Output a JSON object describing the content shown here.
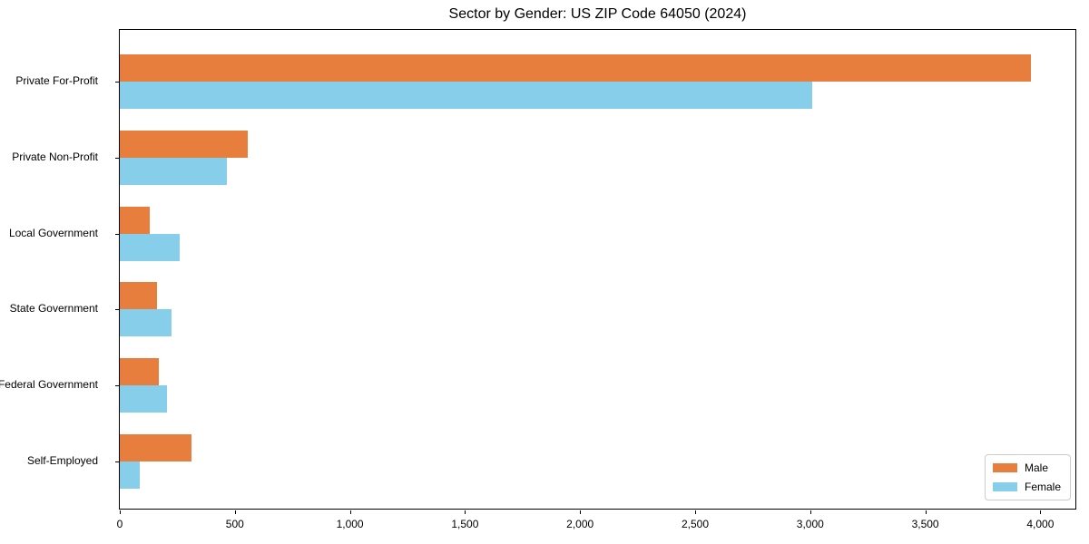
{
  "title": "Sector by Gender: US ZIP Code 64050 (2024)",
  "chart_data": {
    "type": "bar",
    "orientation": "horizontal",
    "title": "Sector by Gender: US ZIP Code 64050 (2024)",
    "categories": [
      "Private For-Profit",
      "Private Non-Profit",
      "Local Government",
      "State Government",
      "Federal Government",
      "Self-Employed"
    ],
    "series": [
      {
        "name": "Male",
        "color": "#e87e3e",
        "values": [
          3960,
          555,
          130,
          160,
          170,
          310
        ]
      },
      {
        "name": "Female",
        "color": "#87ceeb",
        "values": [
          3010,
          465,
          260,
          225,
          205,
          85
        ]
      }
    ],
    "xlabel": "",
    "ylabel": "",
    "xlim": [
      0,
      4160
    ],
    "xticks": [
      0,
      500,
      1000,
      1500,
      2000,
      2500,
      3000,
      3500,
      4000
    ],
    "xtick_labels": [
      "0",
      "500",
      "1,000",
      "1,500",
      "2,000",
      "2,500",
      "3,000",
      "3,500",
      "4,000"
    ],
    "grid": false,
    "legend_position": "lower right"
  },
  "legend": {
    "items": [
      {
        "label": "Male",
        "color": "#e87e3e"
      },
      {
        "label": "Female",
        "color": "#87ceeb"
      }
    ]
  }
}
